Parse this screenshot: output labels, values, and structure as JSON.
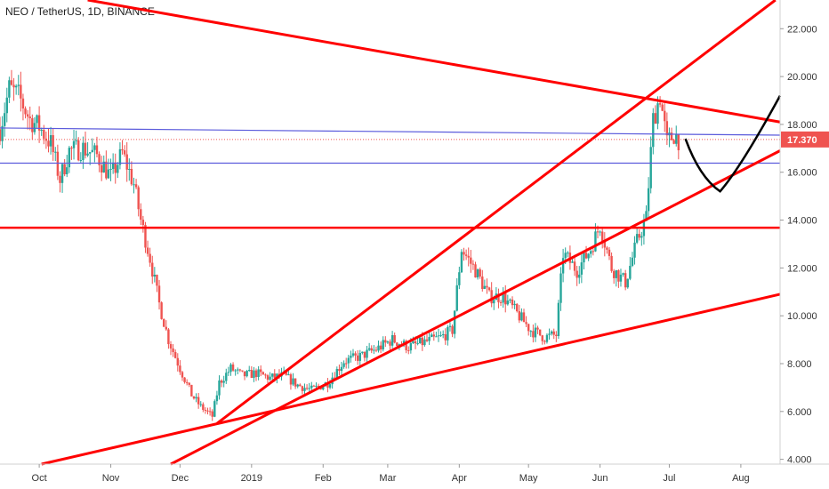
{
  "header": {
    "symbol_title": "NEO / TetherUS, 1D, BINANCE"
  },
  "colors": {
    "up": "#26a69a",
    "down": "#ef5350",
    "trendline": "#ff0000",
    "support": "#5b5bdc",
    "price_tag": "#ef5350",
    "projection": "#000000"
  },
  "price_tag": {
    "value": 17.37,
    "label": "17.370"
  },
  "chart_data": {
    "type": "candlestick",
    "x_labels": [
      "Oct",
      "Nov",
      "Dec",
      "2019",
      "Feb",
      "Mar",
      "Apr",
      "May",
      "Jun",
      "Jul",
      "Aug"
    ],
    "y_ticks": [
      "4.000",
      "6.000",
      "8.000",
      "10.000",
      "12.000",
      "14.000",
      "16.000",
      "18.000",
      "20.000",
      "22.000"
    ],
    "ylim": [
      3.8,
      23.2
    ],
    "xlim": [
      "2018-09-14",
      "2019-08-18"
    ],
    "price_path": [
      [
        "2018-09-14",
        17.8
      ],
      [
        "2018-09-18",
        19.5
      ],
      [
        "2018-09-22",
        19.2
      ],
      [
        "2018-09-27",
        18.2
      ],
      [
        "2018-10-01",
        17.9
      ],
      [
        "2018-10-06",
        17.2
      ],
      [
        "2018-10-10",
        15.7
      ],
      [
        "2018-10-14",
        16.9
      ],
      [
        "2018-10-20",
        17.0
      ],
      [
        "2018-10-26",
        16.7
      ],
      [
        "2018-11-01",
        15.8
      ],
      [
        "2018-11-06",
        16.8
      ],
      [
        "2018-11-11",
        15.5
      ],
      [
        "2018-11-14",
        14.0
      ],
      [
        "2018-11-18",
        12.4
      ],
      [
        "2018-11-22",
        10.5
      ],
      [
        "2018-11-26",
        9.0
      ],
      [
        "2018-12-01",
        7.8
      ],
      [
        "2018-12-06",
        6.7
      ],
      [
        "2018-12-10",
        6.2
      ],
      [
        "2018-12-15",
        5.8
      ],
      [
        "2018-12-18",
        7.2
      ],
      [
        "2018-12-23",
        7.8
      ],
      [
        "2018-12-28",
        7.5
      ],
      [
        "2019-01-03",
        7.6
      ],
      [
        "2019-01-09",
        7.4
      ],
      [
        "2019-01-15",
        7.5
      ],
      [
        "2019-01-21",
        7.1
      ],
      [
        "2019-01-27",
        6.9
      ],
      [
        "2019-02-03",
        7.2
      ],
      [
        "2019-02-10",
        8.1
      ],
      [
        "2019-02-17",
        8.3
      ],
      [
        "2019-02-24",
        8.6
      ],
      [
        "2019-03-03",
        9.0
      ],
      [
        "2019-03-10",
        8.7
      ],
      [
        "2019-03-17",
        8.9
      ],
      [
        "2019-03-24",
        9.1
      ],
      [
        "2019-03-29",
        9.4
      ],
      [
        "2019-04-02",
        12.8
      ],
      [
        "2019-04-08",
        11.9
      ],
      [
        "2019-04-14",
        10.8
      ],
      [
        "2019-04-20",
        10.8
      ],
      [
        "2019-04-26",
        10.1
      ],
      [
        "2019-05-02",
        9.4
      ],
      [
        "2019-05-08",
        9.1
      ],
      [
        "2019-05-13",
        9.2
      ],
      [
        "2019-05-16",
        12.6
      ],
      [
        "2019-05-22",
        11.9
      ],
      [
        "2019-05-28",
        12.8
      ],
      [
        "2019-06-01",
        13.8
      ],
      [
        "2019-06-06",
        12.0
      ],
      [
        "2019-06-12",
        11.4
      ],
      [
        "2019-06-17",
        13.1
      ],
      [
        "2019-06-21",
        14.1
      ],
      [
        "2019-06-24",
        18.2
      ],
      [
        "2019-06-27",
        19.2
      ],
      [
        "2019-06-30",
        17.2
      ],
      [
        "2019-07-03",
        17.6
      ],
      [
        "2019-07-05",
        17.4
      ]
    ],
    "horizontal_lines": [
      {
        "y": 17.85,
        "y_end": 17.55,
        "x_start": "2018-09-14",
        "x_end": "2019-08-18",
        "color": "support"
      },
      {
        "y": 16.38,
        "x_start": "2018-09-14",
        "x_end": "2019-08-18",
        "color": "support"
      },
      {
        "y": 13.68,
        "x_start": "2018-09-14",
        "x_end": "2019-08-18",
        "color": "trendline"
      }
    ],
    "trendlines": [
      {
        "points": [
          [
            "2018-10-22",
            23.2
          ],
          [
            "2019-08-18",
            18.1
          ]
        ],
        "color": "trendline"
      },
      {
        "points": [
          [
            "2018-12-17",
            5.5
          ],
          [
            "2019-08-16",
            23.2
          ]
        ],
        "color": "trendline"
      },
      {
        "points": [
          [
            "2018-11-27",
            3.8
          ],
          [
            "2019-08-18",
            16.9
          ]
        ],
        "color": "trendline"
      },
      {
        "points": [
          [
            "2018-10-02",
            3.8
          ],
          [
            "2019-08-18",
            10.9
          ]
        ],
        "color": "trendline"
      }
    ],
    "projection_curve": {
      "points": [
        [
          "2019-07-08",
          17.4
        ],
        [
          "2019-07-14",
          15.8
        ],
        [
          "2019-07-23",
          15.2
        ],
        [
          "2019-08-01",
          16.2
        ],
        [
          "2019-08-18",
          19.2
        ]
      ],
      "color": "projection"
    }
  }
}
